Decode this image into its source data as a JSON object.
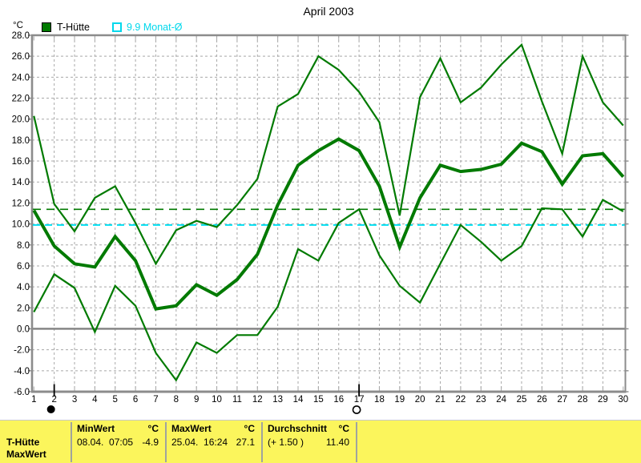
{
  "title": "April 2003",
  "y_unit_label": "°C",
  "legend": [
    {
      "label": "T-Hütte",
      "color": "#007a00",
      "swatch": "filled"
    },
    {
      "label": "9.9 Monat-Ø",
      "color": "#00d8ec",
      "swatch": "outline"
    }
  ],
  "chart_data": {
    "type": "line",
    "title": "April 2003",
    "ylabel": "°C",
    "ylim": [
      -6,
      28
    ],
    "y_tick_step": 2,
    "y_tick_labels": [
      "28.0",
      "26.0",
      "24.0",
      "22.0",
      "20.0",
      "18.0",
      "16.0",
      "14.0",
      "12.0",
      "10.0",
      "8.0",
      "6.0",
      "4.0",
      "2.0",
      "0.0",
      "-2.0",
      "-4.0",
      "-6.0"
    ],
    "x": [
      1,
      2,
      3,
      4,
      5,
      6,
      7,
      8,
      9,
      10,
      11,
      12,
      13,
      14,
      15,
      16,
      17,
      18,
      19,
      20,
      21,
      22,
      23,
      24,
      25,
      26,
      27,
      28,
      29,
      30
    ],
    "x_tick_labels": [
      "1",
      "2",
      "3",
      "4",
      "5",
      "6",
      "7",
      "8",
      "9",
      "10",
      "11",
      "12",
      "13",
      "14",
      "15",
      "16",
      "17",
      "18",
      "19",
      "20",
      "21",
      "22",
      "23",
      "24",
      "25",
      "26",
      "27",
      "28",
      "29",
      "30"
    ],
    "grid": true,
    "series_color": "#007a00",
    "series": [
      {
        "name": "max",
        "width": "thin",
        "values": [
          20.3,
          11.9,
          9.3,
          12.5,
          13.6,
          10.1,
          6.2,
          9.4,
          10.3,
          9.7,
          11.8,
          14.3,
          21.2,
          22.4,
          26.0,
          24.7,
          22.6,
          19.7,
          10.8,
          22.1,
          25.8,
          21.6,
          23.0,
          25.2,
          27.1,
          21.7,
          16.7,
          26.0,
          21.6,
          19.4
        ]
      },
      {
        "name": "mean",
        "width": "thick",
        "values": [
          11.3,
          7.9,
          6.2,
          5.9,
          8.8,
          6.5,
          1.9,
          2.2,
          4.2,
          3.2,
          4.7,
          7.1,
          11.8,
          15.6,
          17.0,
          18.1,
          17.0,
          13.6,
          7.8,
          12.5,
          15.6,
          15.0,
          15.2,
          15.7,
          17.7,
          16.9,
          13.8,
          16.5,
          16.7,
          14.5
        ]
      },
      {
        "name": "min",
        "width": "thin",
        "values": [
          1.6,
          5.2,
          3.9,
          -0.3,
          4.1,
          2.2,
          -2.3,
          -4.9,
          -1.3,
          -2.3,
          -0.6,
          -0.6,
          2.1,
          7.6,
          6.5,
          10.1,
          11.4,
          7.0,
          4.1,
          2.5,
          6.2,
          9.9,
          8.3,
          6.5,
          7.9,
          11.5,
          11.4,
          8.8,
          12.3,
          11.2
        ]
      }
    ],
    "reference_lines": [
      {
        "label": "9.9 Monat-Ø",
        "value": 9.9,
        "color": "#00dff2"
      },
      {
        "label": "Durchschnitt 11.40",
        "value": 11.4,
        "color": "#007a00"
      }
    ],
    "zero_line": 0,
    "day_markers": [
      {
        "day": 2,
        "phase": "new-moon"
      },
      {
        "day": 17,
        "phase": "full-moon"
      }
    ],
    "legend_position": "top-left"
  },
  "status_bar": {
    "background": "#fbf55c",
    "sensor": "T-Hütte",
    "series_label": "MaxWert",
    "cells": [
      {
        "header": "MinWert",
        "unit": "°C",
        "detail": "08.04.  07:05",
        "value": "-4.9"
      },
      {
        "header": "MaxWert",
        "unit": "°C",
        "detail": "25.04.  16:24",
        "value": "27.1"
      },
      {
        "header": "Durchschnitt",
        "unit": "°C",
        "detail": "(+ 1.50 )",
        "value": "11.40"
      }
    ]
  }
}
